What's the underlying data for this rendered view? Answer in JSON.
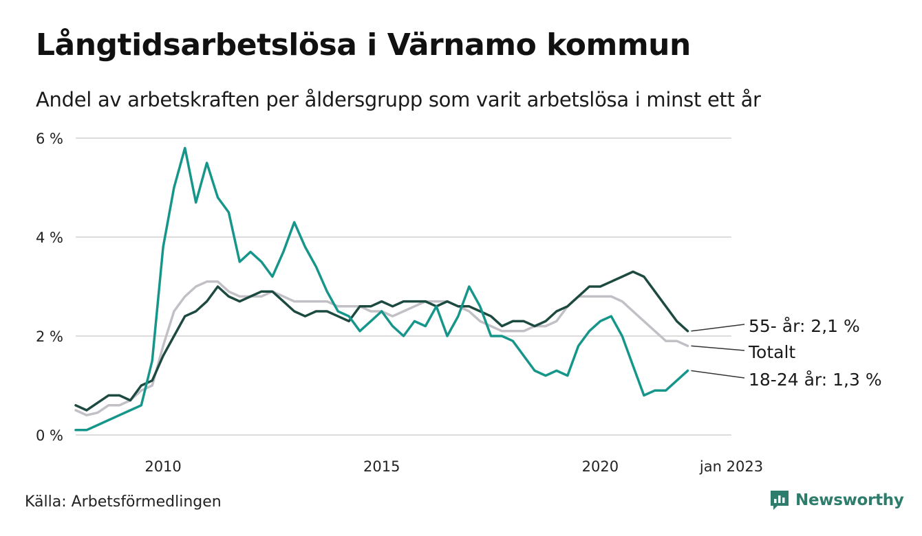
{
  "header": {
    "title": "Långtidsarbetslösa i Värnamo kommun",
    "subtitle": "Andel av arbetskraften per åldersgrupp som varit arbetslösa i minst ett år"
  },
  "footer": {
    "source": "Källa: Arbetsförmedlingen",
    "brand": "Newsworthy"
  },
  "colors": {
    "age_55": "#1d4a40",
    "total": "#c3bfc7",
    "age_18_24": "#16968a",
    "grid": "#dcdcdc",
    "brand": "#2e7d6c"
  },
  "icons": {
    "brand_logo": "newsworthy-logo-icon"
  },
  "chart_data": {
    "type": "line",
    "title": "Långtidsarbetslösa i Värnamo kommun",
    "xlabel": "",
    "ylabel": "",
    "x_start": 2008.0,
    "x_step": 0.25,
    "xlim": [
      2008.0,
      2023.0
    ],
    "ylim": [
      0,
      6
    ],
    "yticks": [
      0,
      2,
      4,
      6
    ],
    "ytick_labels": [
      "0 %",
      "2 %",
      "4 %",
      "6 %"
    ],
    "xticks": [
      2010,
      2015,
      2020,
      2023
    ],
    "xtick_labels": [
      "2010",
      "2015",
      "2020",
      "jan 2023"
    ],
    "grid": true,
    "series": [
      {
        "key": "age_55",
        "name": "55- år",
        "end_label": "55- år: 2,1 %",
        "values": [
          0.6,
          0.5,
          0.65,
          0.8,
          0.8,
          0.7,
          1.0,
          1.1,
          1.6,
          2.0,
          2.4,
          2.5,
          2.7,
          3.0,
          2.8,
          2.7,
          2.8,
          2.9,
          2.9,
          2.7,
          2.5,
          2.4,
          2.5,
          2.5,
          2.4,
          2.3,
          2.6,
          2.6,
          2.7,
          2.6,
          2.7,
          2.7,
          2.7,
          2.6,
          2.7,
          2.6,
          2.6,
          2.5,
          2.4,
          2.2,
          2.3,
          2.3,
          2.2,
          2.3,
          2.5,
          2.6,
          2.8,
          3.0,
          3.0,
          3.1,
          3.2,
          3.3,
          3.2,
          2.9,
          2.6,
          2.3,
          2.1
        ]
      },
      {
        "key": "total",
        "name": "Totalt",
        "end_label": "Totalt",
        "values": [
          0.5,
          0.4,
          0.45,
          0.6,
          0.6,
          0.7,
          0.9,
          1.0,
          1.8,
          2.5,
          2.8,
          3.0,
          3.1,
          3.1,
          2.9,
          2.8,
          2.8,
          2.8,
          2.9,
          2.8,
          2.7,
          2.7,
          2.7,
          2.7,
          2.6,
          2.6,
          2.6,
          2.5,
          2.5,
          2.4,
          2.5,
          2.6,
          2.7,
          2.7,
          2.7,
          2.6,
          2.5,
          2.3,
          2.2,
          2.1,
          2.1,
          2.1,
          2.2,
          2.2,
          2.3,
          2.6,
          2.8,
          2.8,
          2.8,
          2.8,
          2.7,
          2.5,
          2.3,
          2.1,
          1.9,
          1.9,
          1.8
        ]
      },
      {
        "key": "age_18_24",
        "name": "18-24 år",
        "end_label": "18-24 år: 1,3 %",
        "values": [
          0.1,
          0.1,
          0.2,
          0.3,
          0.4,
          0.5,
          0.6,
          1.5,
          3.8,
          5.0,
          5.8,
          4.7,
          5.5,
          4.8,
          4.5,
          3.5,
          3.7,
          3.5,
          3.2,
          3.7,
          4.3,
          3.8,
          3.4,
          2.9,
          2.5,
          2.4,
          2.1,
          2.3,
          2.5,
          2.2,
          2.0,
          2.3,
          2.2,
          2.6,
          2.0,
          2.4,
          3.0,
          2.6,
          2.0,
          2.0,
          1.9,
          1.6,
          1.3,
          1.2,
          1.3,
          1.2,
          1.8,
          2.1,
          2.3,
          2.4,
          2.0,
          1.4,
          0.8,
          0.9,
          0.9,
          1.1,
          1.3
        ]
      }
    ]
  }
}
